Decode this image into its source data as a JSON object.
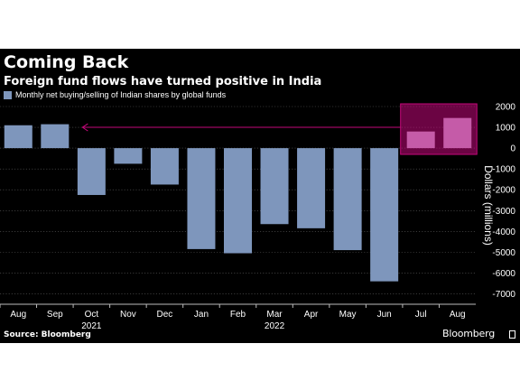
{
  "chart_data": {
    "type": "bar",
    "title": "Coming Back",
    "subtitle": "Foreign fund flows have turned positive in India",
    "ylabel": "Dollars (millions)",
    "categories": [
      "Aug",
      "Sep",
      "Oct",
      "Nov",
      "Dec",
      "Jan",
      "Feb",
      "Mar",
      "Apr",
      "May",
      "Jun",
      "Jul",
      "Aug"
    ],
    "year_labels": [
      {
        "label": "2021",
        "category_index": 2
      },
      {
        "label": "2022",
        "category_index": 7
      }
    ],
    "series": [
      {
        "name": "Monthly net buying/selling of Indian shares by global funds",
        "values": [
          1100,
          1150,
          -2250,
          -750,
          -1750,
          -4850,
          -5050,
          -3650,
          -3850,
          -4900,
          -6400,
          800,
          1450
        ],
        "color": "#7e96bc"
      }
    ],
    "highlighted_indices": [
      11,
      12
    ],
    "highlight_color": "#c55ba8",
    "highlight_box_color": "#c3087a",
    "ylim": [
      -7500,
      2000
    ],
    "yticks": [
      2000,
      1000,
      0,
      -1000,
      -2000,
      -3000,
      -4000,
      -5000,
      -6000,
      -7000
    ],
    "grid": true,
    "legend_position": "top-left",
    "y_axis_side": "right"
  },
  "source_label": "Source: Bloomberg",
  "brand_label": "Bloomberg"
}
